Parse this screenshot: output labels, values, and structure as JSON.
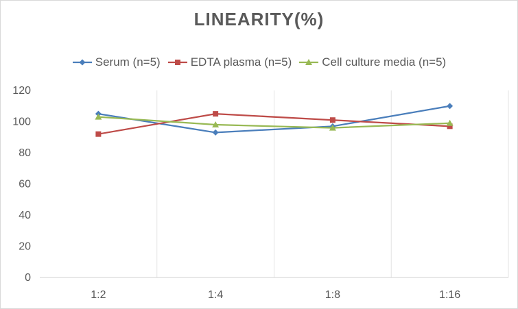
{
  "chart_data": {
    "type": "line",
    "title": "LINEARITY(%)",
    "xlabel": "",
    "ylabel": "",
    "categories": [
      "1:2",
      "1:4",
      "1:8",
      "1:16"
    ],
    "ylim": [
      0,
      120
    ],
    "yticks": [
      0,
      20,
      40,
      60,
      80,
      100,
      120
    ],
    "grid": "vertical",
    "legend_position": "top",
    "series": [
      {
        "name": "Serum (n=5)",
        "values": [
          105,
          93,
          97,
          110
        ],
        "color": "#4a7ebb",
        "marker": "diamond"
      },
      {
        "name": "EDTA plasma (n=5)",
        "values": [
          92,
          105,
          101,
          97
        ],
        "color": "#be4b48",
        "marker": "square"
      },
      {
        "name": "Cell culture media (n=5)",
        "values": [
          103,
          98,
          96,
          99
        ],
        "color": "#98b954",
        "marker": "triangle"
      }
    ]
  }
}
